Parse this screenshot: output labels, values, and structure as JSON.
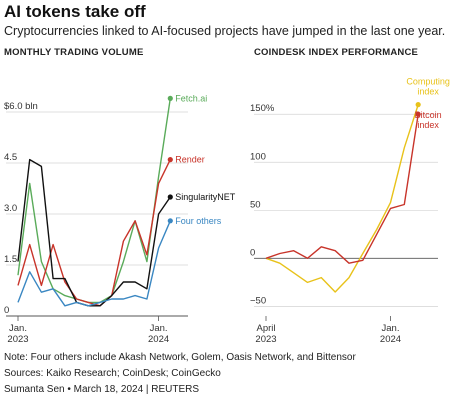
{
  "title": "AI tokens take off",
  "subtitle": "Cryptocurrencies linked to AI-focused projects have jumped in the last one year.",
  "note": "Note: Four others include Akash Network, Golem, Oasis Network, and Bittensor",
  "sources": "Sources: Kaiko Research; CoinDesk; CoinGecko",
  "credit": "Sumanta Sen • March 18, 2024 | REUTERS",
  "chart_data": [
    {
      "type": "line",
      "title": "MONTHLY TRADING VOLUME",
      "ylim": [
        0,
        6.5
      ],
      "yticks": [
        {
          "value": 0,
          "label": "0"
        },
        {
          "value": 1.5,
          "label": "1.5"
        },
        {
          "value": 3.0,
          "label": "3.0"
        },
        {
          "value": 4.5,
          "label": "4.5"
        },
        {
          "value": 6.0,
          "label": "$6.0 bln"
        }
      ],
      "xlim": [
        0,
        14
      ],
      "xticks": [
        {
          "value": 0,
          "label": [
            "Jan.",
            "2023"
          ]
        },
        {
          "value": 12,
          "label": [
            "Jan.",
            "2024"
          ]
        }
      ],
      "x": [
        0,
        1,
        2,
        3,
        4,
        5,
        6,
        7,
        8,
        9,
        10,
        11,
        12,
        13
      ],
      "grid": true,
      "series": [
        {
          "name": "Fetch.ai",
          "color": "#5aab5a",
          "values": [
            1.2,
            3.9,
            1.6,
            0.8,
            0.6,
            0.5,
            0.4,
            0.4,
            0.6,
            1.6,
            2.8,
            1.6,
            4.1,
            6.4
          ]
        },
        {
          "name": "Render",
          "color": "#c8342a",
          "values": [
            0.9,
            2.1,
            0.9,
            2.1,
            1.0,
            0.5,
            0.4,
            0.3,
            0.6,
            2.2,
            2.8,
            1.8,
            3.9,
            4.6
          ]
        },
        {
          "name": "SingularityNET",
          "color": "#111111",
          "values": [
            1.6,
            4.6,
            4.4,
            1.1,
            1.1,
            0.4,
            0.3,
            0.3,
            0.6,
            1.0,
            1.0,
            0.8,
            3.0,
            3.5
          ]
        },
        {
          "name": "Four others",
          "color": "#3a87c2",
          "values": [
            0.4,
            1.3,
            0.7,
            0.8,
            0.3,
            0.4,
            0.3,
            0.4,
            0.5,
            0.5,
            0.6,
            0.5,
            2.0,
            2.8
          ]
        }
      ]
    },
    {
      "type": "line",
      "title": "COINDESK INDEX PERFORMANCE",
      "ylim": [
        -60,
        170
      ],
      "yticks": [
        {
          "value": -50,
          "label": "−50"
        },
        {
          "value": 0,
          "label": "0"
        },
        {
          "value": 50,
          "label": "50"
        },
        {
          "value": 100,
          "label": "100"
        },
        {
          "value": 150,
          "label": "150%"
        }
      ],
      "xlim": [
        0,
        12
      ],
      "xticks": [
        {
          "value": 0,
          "label": [
            "April",
            "2023"
          ]
        },
        {
          "value": 9,
          "label": [
            "Jan.",
            "2024"
          ]
        }
      ],
      "x": [
        0,
        1,
        2,
        3,
        4,
        5,
        6,
        7,
        8,
        9,
        10,
        11
      ],
      "grid": true,
      "series": [
        {
          "name": "Computing index",
          "label_lines": [
            "Computing",
            "index"
          ],
          "color": "#e8c21a",
          "values": [
            0,
            -5,
            -15,
            -25,
            -20,
            -35,
            -20,
            5,
            30,
            58,
            115,
            160
          ]
        },
        {
          "name": "Bitcoin index",
          "label_lines": [
            "Bitcoin",
            "index"
          ],
          "color": "#c8342a",
          "values": [
            0,
            5,
            8,
            0,
            12,
            8,
            -5,
            -2,
            25,
            52,
            56,
            150
          ]
        }
      ]
    }
  ]
}
